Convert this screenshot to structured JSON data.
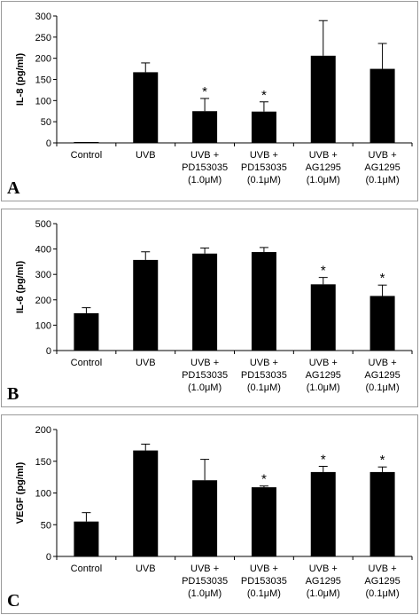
{
  "chart_data": [
    {
      "type": "bar",
      "panel_label": "A",
      "ylabel": "IL-8 (pg/ml)",
      "ylim": [
        0,
        300
      ],
      "yticks": [
        0,
        50,
        100,
        150,
        200,
        250,
        300
      ],
      "categories": [
        [
          "Control"
        ],
        [
          "UVB"
        ],
        [
          "UVB +",
          "PD153035",
          "(1.0μM)"
        ],
        [
          "UVB +",
          "PD153035",
          "(0.1μM)"
        ],
        [
          "UVB +",
          "AG1295",
          "(1.0μM)"
        ],
        [
          "UVB +",
          "AG1295",
          "(0.1μM)"
        ]
      ],
      "values": [
        1,
        167,
        75,
        74,
        206,
        175
      ],
      "errors": [
        0,
        22,
        30,
        23,
        83,
        60
      ],
      "annotations": [
        "",
        "",
        "*",
        "*",
        "",
        ""
      ],
      "bar_color": "#000000"
    },
    {
      "type": "bar",
      "panel_label": "B",
      "ylabel": "IL-6 (pg/ml)",
      "ylim": [
        0,
        500
      ],
      "yticks": [
        0,
        100,
        200,
        300,
        400,
        500
      ],
      "categories": [
        [
          "Control"
        ],
        [
          "UVB"
        ],
        [
          "UVB +",
          "PD153035",
          "(1.0μM)"
        ],
        [
          "UVB +",
          "PD153035",
          "(0.1μM)"
        ],
        [
          "UVB +",
          "AG1295",
          "(1.0μM)"
        ],
        [
          "UVB +",
          "AG1295",
          "(0.1μM)"
        ]
      ],
      "values": [
        147,
        357,
        382,
        388,
        261,
        215
      ],
      "errors": [
        22,
        32,
        22,
        18,
        27,
        43
      ],
      "annotations": [
        "",
        "",
        "",
        "",
        "*",
        "*"
      ],
      "bar_color": "#000000"
    },
    {
      "type": "bar",
      "panel_label": "C",
      "ylabel": "VEGF (pg/ml)",
      "ylim": [
        0,
        200
      ],
      "yticks": [
        0,
        50,
        100,
        150,
        200
      ],
      "categories": [
        [
          "Control"
        ],
        [
          "UVB"
        ],
        [
          "UVB +",
          "PD153035",
          "(1.0μM)"
        ],
        [
          "UVB +",
          "PD153035",
          "(0.1μM)"
        ],
        [
          "UVB +",
          "AG1295",
          "(1.0μM)"
        ],
        [
          "UVB +",
          "AG1295",
          "(0.1μM)"
        ]
      ],
      "values": [
        55,
        167,
        120,
        109,
        133,
        133
      ],
      "errors": [
        14,
        10,
        33,
        2,
        9,
        8
      ],
      "annotations": [
        "",
        "",
        "",
        "*",
        "*",
        "*"
      ],
      "bar_color": "#000000"
    }
  ]
}
